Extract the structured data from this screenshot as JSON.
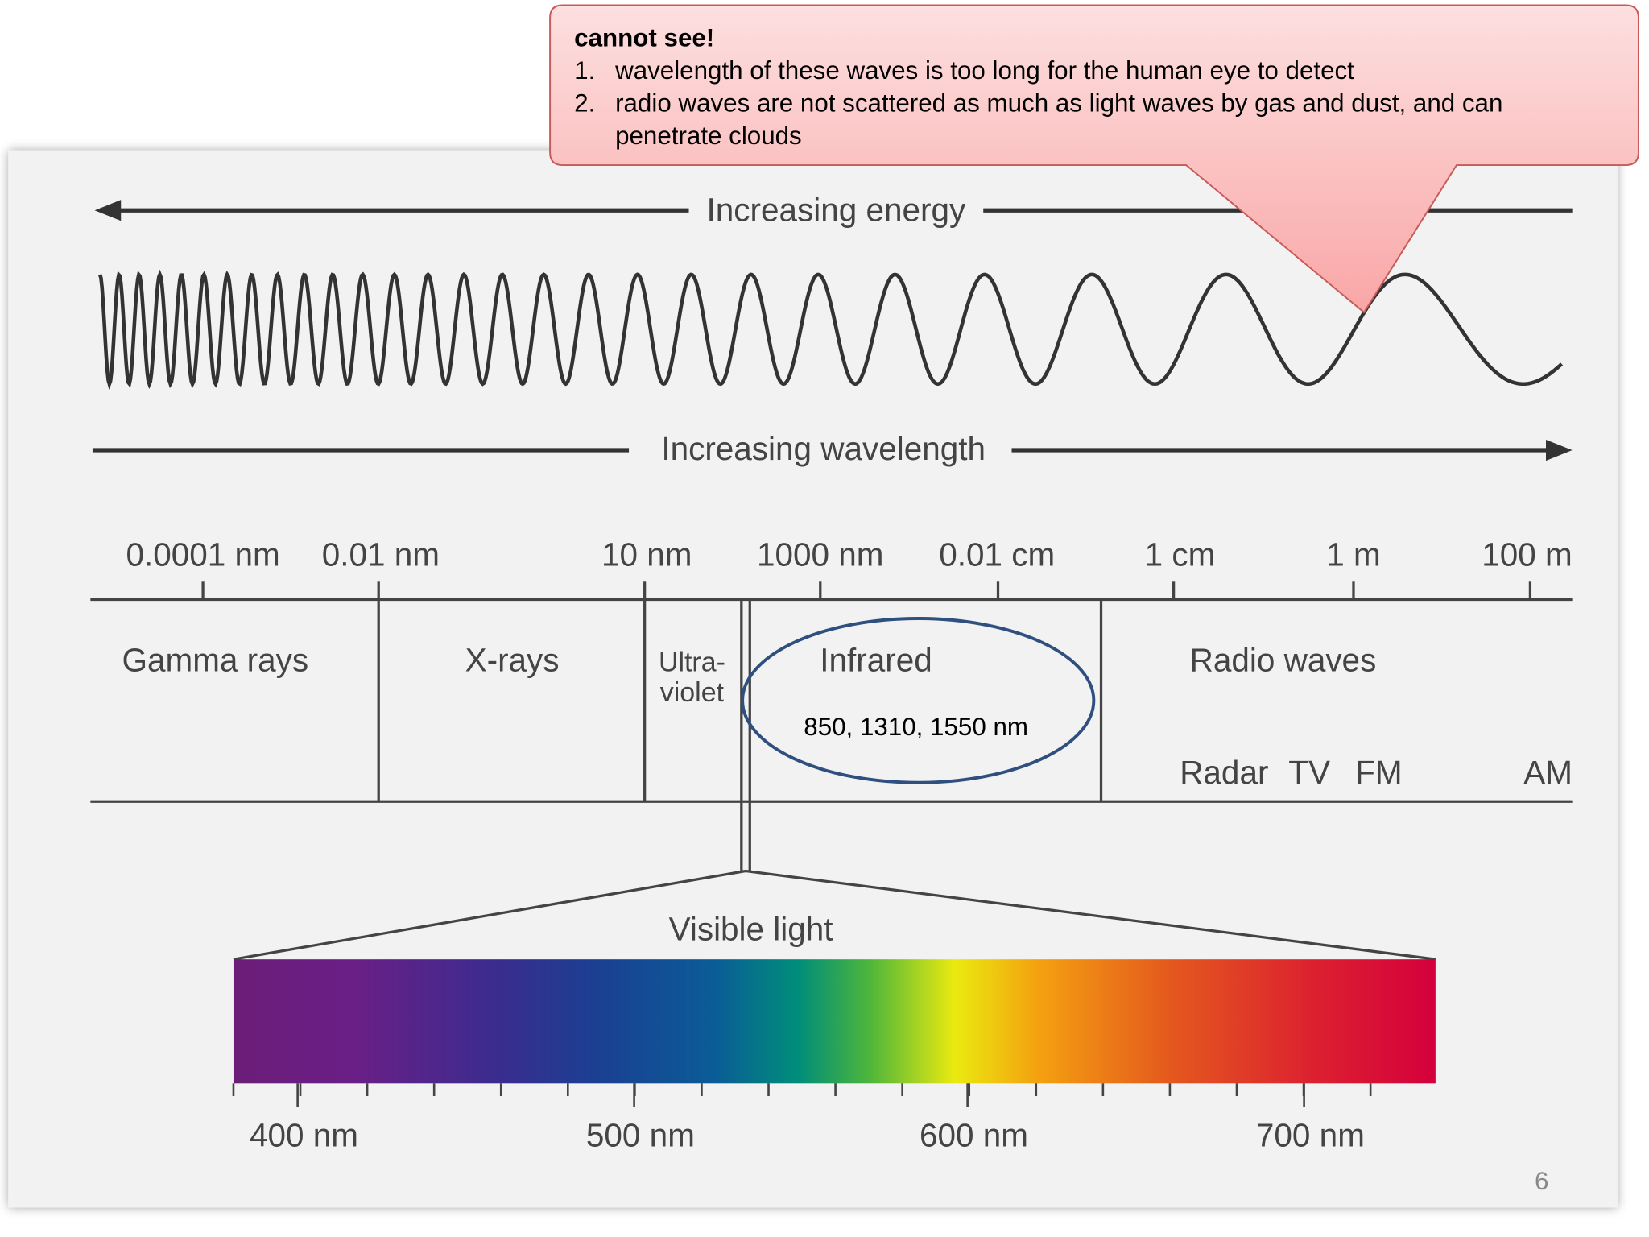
{
  "callout": {
    "title": "cannot see!",
    "items": [
      {
        "marker": "1.",
        "text": [
          "wavelength of these waves is too long for the human eye to detect"
        ]
      },
      {
        "marker": "2.",
        "text": [
          "radio waves are not scattered as much as light waves by gas and dust, and can",
          "penetrate clouds"
        ]
      }
    ]
  },
  "diagram": {
    "energy_label": "Increasing energy",
    "wavelength_label": "Increasing wavelength",
    "scale": [
      "0.0001 nm",
      "0.01 nm",
      "10 nm",
      "1000 nm",
      "0.01 cm",
      "1 cm",
      "1 m",
      "100 m"
    ],
    "regions": [
      "Gamma rays",
      "X-rays",
      [
        "Ultra-",
        "violet"
      ],
      "Infrared",
      "Radio waves"
    ],
    "radio_bands": [
      "Radar",
      "TV",
      "FM",
      "AM"
    ],
    "highlight": "850, 1310, 1550 nm",
    "visible_label": "Visible light",
    "visible_scale": [
      "400 nm",
      "500 nm",
      "600 nm",
      "700 nm"
    ]
  },
  "page_number": 6
}
